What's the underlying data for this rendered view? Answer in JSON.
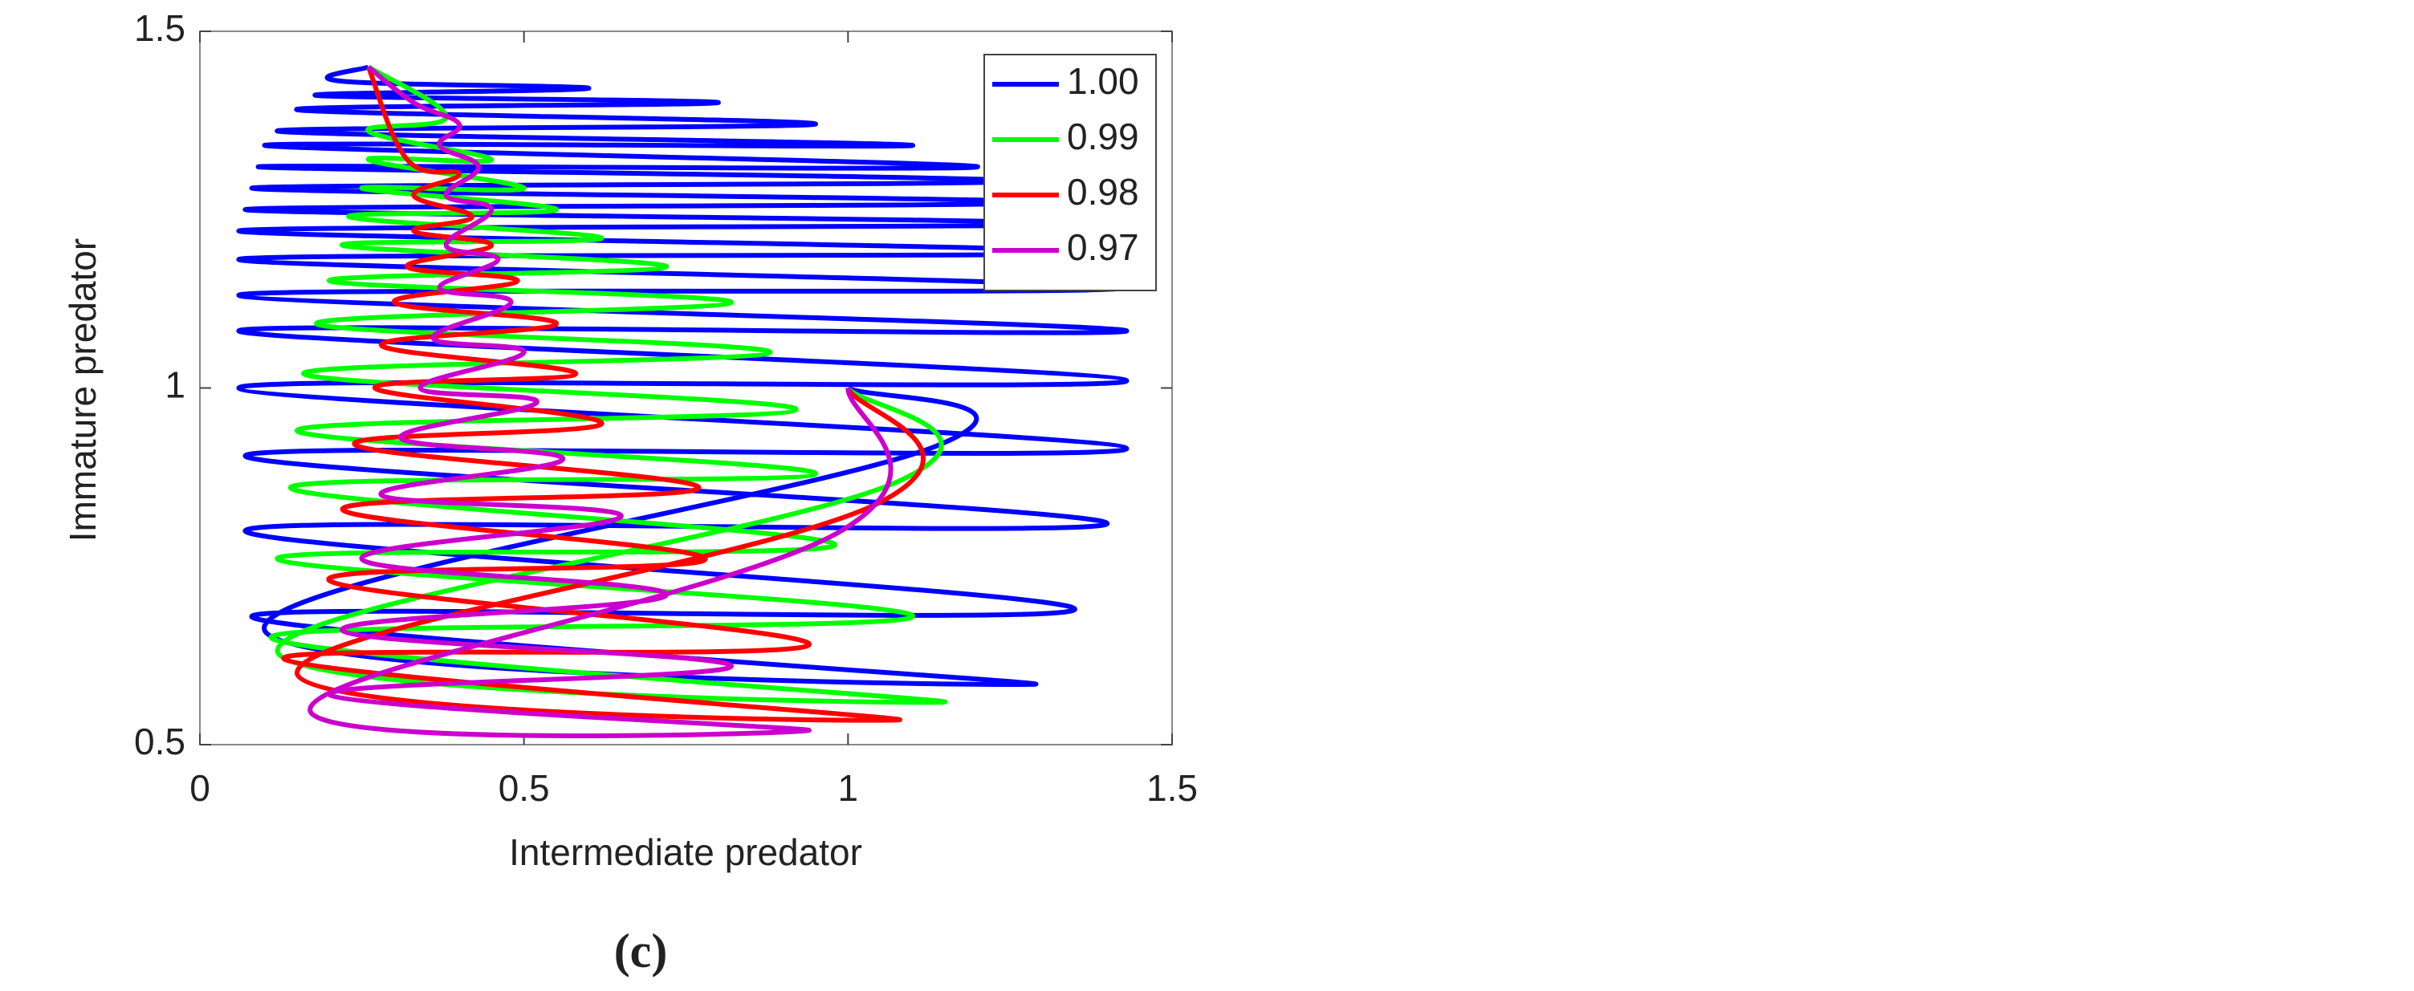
{
  "chart_data": {
    "type": "line",
    "xlabel": "Intermediate predator",
    "ylabel": "Immature predator",
    "caption": "(c)",
    "xlim": [
      0,
      1.5
    ],
    "xticks": [
      0,
      0.5,
      1,
      1.5
    ],
    "ylim": [
      0.5,
      1.5
    ],
    "yticks": [
      0.5,
      1,
      1.5
    ],
    "legend": "upper right",
    "series": [
      {
        "name": "1.00",
        "color": "#0000ff",
        "x": [
          1,
          1.14,
          0.1,
          1.29,
          0.08,
          1.35,
          0.07,
          1.4,
          0.07,
          1.43,
          0.06,
          1.43,
          0.06,
          1.43,
          0.06,
          1.42,
          0.06,
          1.38,
          0.06,
          1.34,
          0.07,
          1.3,
          0.08,
          1.26,
          0.09,
          1.2,
          0.1,
          1.1,
          0.12,
          0.95,
          0.15,
          0.8,
          0.18,
          0.6,
          0.22,
          0.26
        ],
        "values": [
          1,
          0.92,
          0.66,
          0.585,
          0.68,
          0.69,
          0.8,
          0.81,
          0.905,
          0.915,
          1.0,
          1.01,
          1.08,
          1.08,
          1.13,
          1.14,
          1.18,
          1.19,
          1.22,
          1.23,
          1.25,
          1.26,
          1.28,
          1.29,
          1.31,
          1.31,
          1.34,
          1.34,
          1.36,
          1.37,
          1.39,
          1.4,
          1.41,
          1.42,
          1.43,
          1.45
        ]
      },
      {
        "name": "0.99",
        "color": "#00ff00",
        "x": [
          1,
          1.08,
          0.12,
          1.15,
          0.11,
          1.1,
          0.12,
          0.98,
          0.14,
          0.95,
          0.15,
          0.92,
          0.16,
          0.88,
          0.18,
          0.82,
          0.2,
          0.72,
          0.22,
          0.62,
          0.23,
          0.55,
          0.25,
          0.5,
          0.26,
          0.45,
          0.26,
          0.38,
          0.26
        ],
        "values": [
          1,
          0.87,
          0.63,
          0.56,
          0.65,
          0.68,
          0.76,
          0.78,
          0.86,
          0.88,
          0.94,
          0.97,
          1.02,
          1.05,
          1.09,
          1.12,
          1.15,
          1.17,
          1.2,
          1.21,
          1.24,
          1.25,
          1.28,
          1.28,
          1.32,
          1.32,
          1.36,
          1.38,
          1.45
        ]
      },
      {
        "name": "0.98",
        "color": "#ff0000",
        "x": [
          1,
          1.05,
          0.15,
          1.08,
          0.13,
          0.94,
          0.2,
          0.78,
          0.22,
          0.77,
          0.24,
          0.62,
          0.27,
          0.58,
          0.28,
          0.55,
          0.3,
          0.49,
          0.32,
          0.45,
          0.33,
          0.42,
          0.33,
          0.4,
          0.32,
          0.26
        ],
        "values": [
          1,
          0.84,
          0.6,
          0.535,
          0.62,
          0.64,
          0.73,
          0.76,
          0.83,
          0.86,
          0.92,
          0.95,
          1.0,
          1.02,
          1.06,
          1.09,
          1.12,
          1.15,
          1.17,
          1.2,
          1.22,
          1.24,
          1.27,
          1.3,
          1.32,
          1.45
        ]
      },
      {
        "name": "0.97",
        "color": "#cc00cc",
        "x": [
          1,
          0.99,
          0.17,
          0.94,
          0.2,
          0.82,
          0.22,
          0.72,
          0.25,
          0.65,
          0.28,
          0.56,
          0.31,
          0.52,
          0.34,
          0.5,
          0.36,
          0.48,
          0.37,
          0.46,
          0.38,
          0.45,
          0.38,
          0.43,
          0.37,
          0.4,
          0.33,
          0.26
        ],
        "values": [
          1,
          0.8,
          0.55,
          0.52,
          0.57,
          0.61,
          0.66,
          0.71,
          0.76,
          0.82,
          0.85,
          0.9,
          0.93,
          0.98,
          1.0,
          1.05,
          1.07,
          1.12,
          1.14,
          1.18,
          1.2,
          1.25,
          1.27,
          1.31,
          1.34,
          1.37,
          1.4,
          1.45
        ]
      }
    ]
  }
}
